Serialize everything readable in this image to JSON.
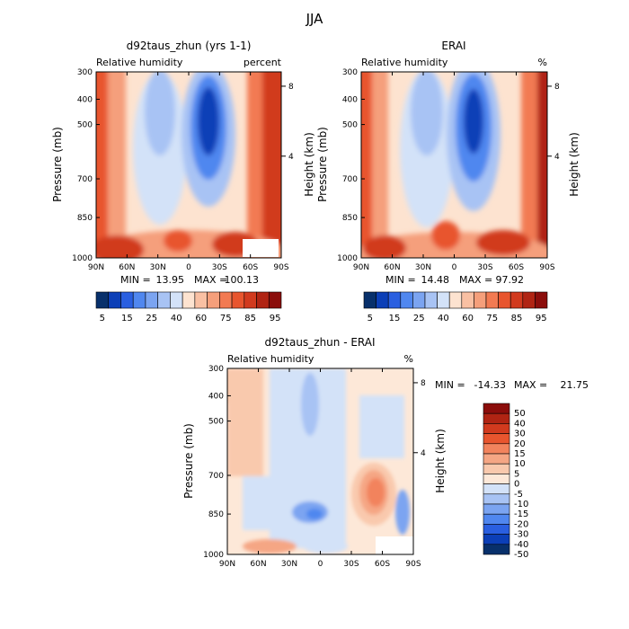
{
  "figure": {
    "title": "JJA"
  },
  "palettes": {
    "absolute": [
      "#08306b",
      "#0c3fb7",
      "#2a5fe0",
      "#5087ef",
      "#7ba4f1",
      "#a8c3f4",
      "#d3e2f8",
      "#fde3d0",
      "#f9c0a3",
      "#f59f7b",
      "#f27a52",
      "#e8552e",
      "#d13a1e",
      "#b02413",
      "#8b0d0b"
    ],
    "difference": [
      "#08306b",
      "#0c3fb7",
      "#2a5fe0",
      "#5087ef",
      "#7ba4f1",
      "#a8c3f4",
      "#d3e2f8",
      "#fde8d8",
      "#f9c9ad",
      "#f5a684",
      "#f2835d",
      "#e8552e",
      "#d13a1e",
      "#b02413",
      "#8b0d0b"
    ]
  },
  "chart_data": [
    {
      "type": "heatmap",
      "title": "d92taus_zhun (yrs 1-1)",
      "left_label": "Relative humidity",
      "right_label": "percent",
      "ylabel": "Pressure (mb)",
      "y2label": "Height (km)",
      "x_ticks": [
        "90N",
        "60N",
        "30N",
        "0",
        "30S",
        "60S",
        "90S"
      ],
      "y_ticks": [
        "300",
        "400",
        "500",
        "700",
        "850",
        "1000"
      ],
      "y2_ticks": [
        "8",
        "4"
      ],
      "stats": {
        "min_label": "MIN =",
        "min": "13.95",
        "max_label": "MAX =",
        "max": "100.13"
      },
      "colorbar_labels": [
        "5",
        "15",
        "25",
        "40",
        "60",
        "75",
        "85",
        "95"
      ]
    },
    {
      "type": "heatmap",
      "title": "ERAI",
      "left_label": "Relative humidity",
      "right_label": "%",
      "ylabel": "Pressure (mb)",
      "y2label": "Height (km)",
      "x_ticks": [
        "90N",
        "60N",
        "30N",
        "0",
        "30S",
        "60S",
        "90S"
      ],
      "y_ticks": [
        "300",
        "400",
        "500",
        "700",
        "850",
        "1000"
      ],
      "y2_ticks": [
        "8",
        "4"
      ],
      "stats": {
        "min_label": "MIN =",
        "min": "14.48",
        "max_label": "MAX =",
        "max": "97.92"
      },
      "colorbar_labels": [
        "5",
        "15",
        "25",
        "40",
        "60",
        "75",
        "85",
        "95"
      ]
    },
    {
      "type": "heatmap",
      "title": "d92taus_zhun - ERAI",
      "left_label": "Relative humidity",
      "right_label": "%",
      "ylabel": "Pressure (mb)",
      "y2label": "Height (km)",
      "x_ticks": [
        "90N",
        "60N",
        "30N",
        "0",
        "30S",
        "60S",
        "90S"
      ],
      "y_ticks": [
        "300",
        "400",
        "500",
        "700",
        "850",
        "1000"
      ],
      "y2_ticks": [
        "8",
        "4"
      ],
      "stats": {
        "min_label": "MIN =",
        "min": "-14.33",
        "max_label": "MAX =",
        "max": "21.75"
      },
      "colorbar_labels": [
        "50",
        "40",
        "30",
        "20",
        "15",
        "10",
        "5",
        "0",
        "-5",
        "-10",
        "-15",
        "-20",
        "-30",
        "-40",
        "-50"
      ]
    }
  ]
}
